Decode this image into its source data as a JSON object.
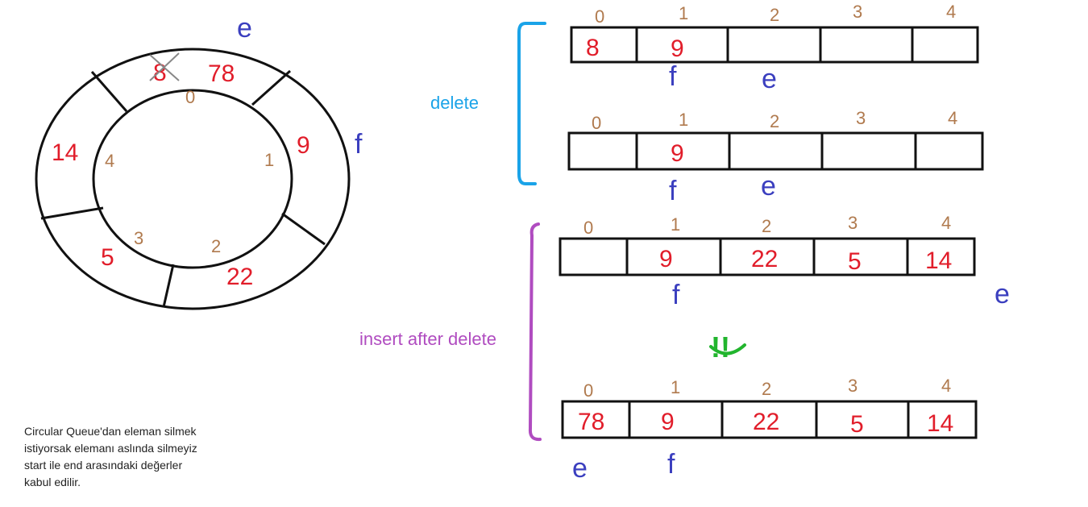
{
  "circle": {
    "slots": [
      {
        "index": "0",
        "value": "78",
        "old_value": "8"
      },
      {
        "index": "1",
        "value": "9"
      },
      {
        "index": "2",
        "value": "22"
      },
      {
        "index": "3",
        "value": "5"
      },
      {
        "index": "4",
        "value": "14"
      }
    ],
    "end_marker": "e",
    "front_marker": "f"
  },
  "sections": {
    "delete_label": "delete",
    "insert_label": "insert after delete",
    "ok_mark": "!!"
  },
  "arrays": [
    {
      "indices": [
        "0",
        "1",
        "2",
        "3",
        "4"
      ],
      "cells": [
        "8",
        "9",
        "",
        "",
        ""
      ],
      "front_label": "f",
      "end_label": "e"
    },
    {
      "indices": [
        "0",
        "1",
        "2",
        "3",
        "4"
      ],
      "cells": [
        "",
        "9",
        "",
        "",
        ""
      ],
      "front_label": "f",
      "end_label": "e"
    },
    {
      "indices": [
        "0",
        "1",
        "2",
        "3",
        "4"
      ],
      "cells": [
        "",
        "9",
        "22",
        "5",
        "14"
      ],
      "front_label": "f",
      "end_label": "e"
    },
    {
      "indices": [
        "0",
        "1",
        "2",
        "3",
        "4"
      ],
      "cells": [
        "78",
        "9",
        "22",
        "5",
        "14"
      ],
      "front_label": "f",
      "end_label": "e"
    }
  ],
  "note": {
    "lines": [
      "Circular Queue'dan eleman silmek",
      "istiyorsak elemanı aslında silmeyiz",
      "start ile end arasındaki değerler",
      "kabul edilir."
    ]
  },
  "colors": {
    "index": "#b07a4e",
    "value": "#e11d2a",
    "pointer": "#3b3fbf",
    "delete": "#1aa3e8",
    "insert": "#b04cc0",
    "ok": "#22b52e"
  }
}
